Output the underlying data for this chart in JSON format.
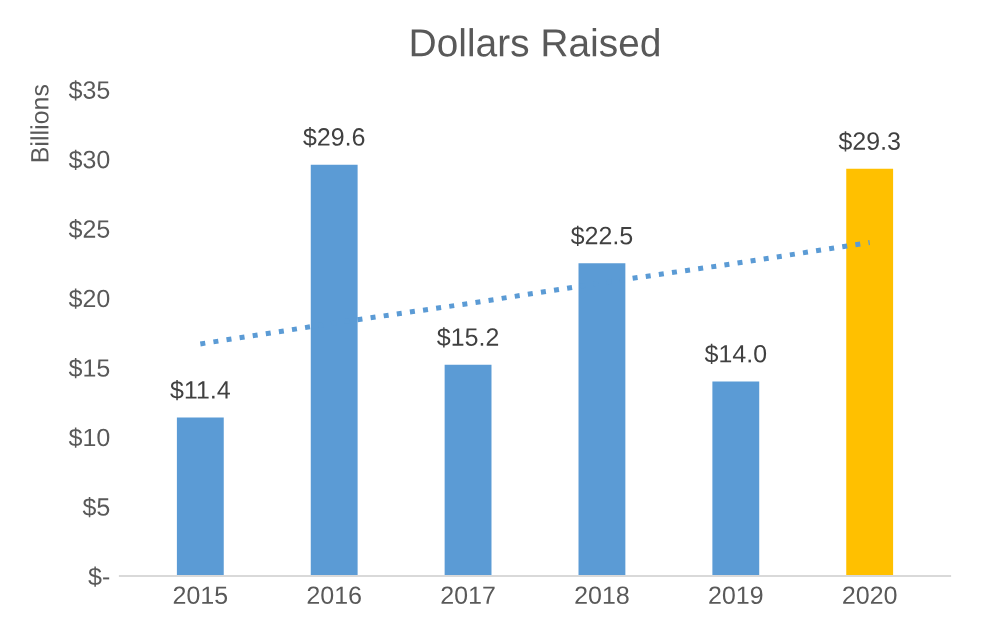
{
  "chart_data": {
    "type": "bar",
    "title": "Dollars Raised",
    "ylabel": "Billions",
    "categories": [
      "2015",
      "2016",
      "2017",
      "2018",
      "2019",
      "2020"
    ],
    "series": [
      {
        "values": [
          11.4,
          29.6,
          15.2,
          22.5,
          14.0,
          29.3
        ],
        "colors": [
          "#5b9bd5",
          "#5b9bd5",
          "#5b9bd5",
          "#5b9bd5",
          "#5b9bd5",
          "#ffc000"
        ],
        "value_labels": [
          "$11.4",
          "$29.6",
          "$15.2",
          "$22.5",
          "$14.0",
          "$29.3"
        ]
      },
      {
        "type": "line",
        "values": [
          16.7,
          18.2,
          19.6,
          21.1,
          22.5,
          24.0
        ],
        "color": "#5b9bd5",
        "line_style": "dotted"
      }
    ],
    "ylim": [
      0,
      35
    ],
    "yticks": [
      {
        "value": 0,
        "label": "$-"
      },
      {
        "value": 5,
        "label": "$5"
      },
      {
        "value": 10,
        "label": "$10"
      },
      {
        "value": 15,
        "label": "$15"
      },
      {
        "value": 20,
        "label": "$20"
      },
      {
        "value": 25,
        "label": "$25"
      },
      {
        "value": 30,
        "label": "$30"
      },
      {
        "value": 35,
        "label": "$35"
      }
    ],
    "grid": false
  }
}
